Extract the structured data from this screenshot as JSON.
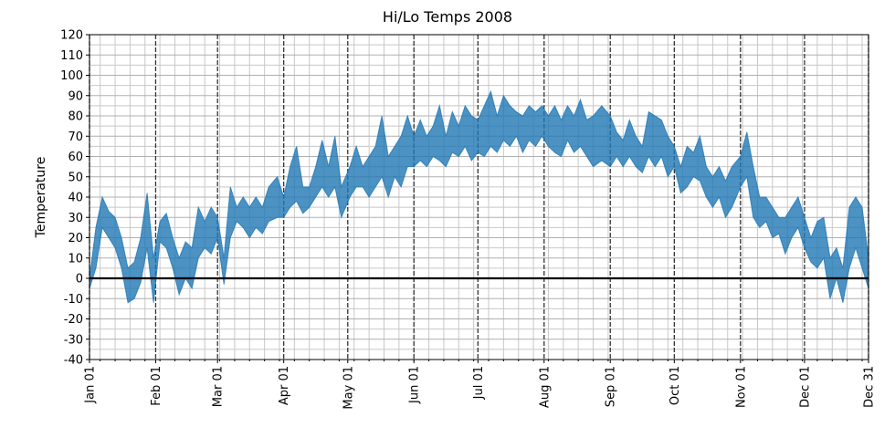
{
  "chart_data": {
    "type": "fill_between",
    "title": "Hi/Lo Temps 2008",
    "y_label": "Temperature",
    "x": [
      "2008-01-01",
      "2008-01-04",
      "2008-01-07",
      "2008-01-10",
      "2008-01-13",
      "2008-01-16",
      "2008-01-19",
      "2008-01-22",
      "2008-01-25",
      "2008-01-28",
      "2008-01-31",
      "2008-02-03",
      "2008-02-06",
      "2008-02-09",
      "2008-02-12",
      "2008-02-15",
      "2008-02-18",
      "2008-02-21",
      "2008-02-24",
      "2008-02-27",
      "2008-03-01",
      "2008-03-04",
      "2008-03-07",
      "2008-03-10",
      "2008-03-13",
      "2008-03-16",
      "2008-03-19",
      "2008-03-22",
      "2008-03-25",
      "2008-03-29",
      "2008-04-01",
      "2008-04-04",
      "2008-04-07",
      "2008-04-10",
      "2008-04-13",
      "2008-04-16",
      "2008-04-19",
      "2008-04-22",
      "2008-04-25",
      "2008-04-28",
      "2008-05-02",
      "2008-05-05",
      "2008-05-08",
      "2008-05-11",
      "2008-05-14",
      "2008-05-17",
      "2008-05-20",
      "2008-05-23",
      "2008-05-26",
      "2008-05-29",
      "2008-06-01",
      "2008-06-04",
      "2008-06-07",
      "2008-06-10",
      "2008-06-13",
      "2008-06-16",
      "2008-06-19",
      "2008-06-22",
      "2008-06-25",
      "2008-06-28",
      "2008-07-01",
      "2008-07-04",
      "2008-07-07",
      "2008-07-10",
      "2008-07-13",
      "2008-07-16",
      "2008-07-19",
      "2008-07-22",
      "2008-07-25",
      "2008-07-28",
      "2008-07-31",
      "2008-08-03",
      "2008-08-06",
      "2008-08-09",
      "2008-08-12",
      "2008-08-15",
      "2008-08-18",
      "2008-08-21",
      "2008-08-24",
      "2008-08-28",
      "2008-09-01",
      "2008-09-04",
      "2008-09-07",
      "2008-09-10",
      "2008-09-13",
      "2008-09-16",
      "2008-09-19",
      "2008-09-22",
      "2008-09-25",
      "2008-09-28",
      "2008-10-01",
      "2008-10-04",
      "2008-10-07",
      "2008-10-10",
      "2008-10-13",
      "2008-10-16",
      "2008-10-19",
      "2008-10-22",
      "2008-10-25",
      "2008-10-28",
      "2008-11-01",
      "2008-11-04",
      "2008-11-07",
      "2008-11-10",
      "2008-11-13",
      "2008-11-16",
      "2008-11-19",
      "2008-11-22",
      "2008-11-25",
      "2008-11-28",
      "2008-12-01",
      "2008-12-04",
      "2008-12-07",
      "2008-12-10",
      "2008-12-13",
      "2008-12-16",
      "2008-12-19",
      "2008-12-22",
      "2008-12-25",
      "2008-12-28",
      "2008-12-31"
    ],
    "series": [
      {
        "values": [
          -5,
          5,
          25,
          20,
          15,
          5,
          -12,
          -10,
          -2,
          15,
          -12,
          18,
          15,
          5,
          -8,
          0,
          -5,
          10,
          15,
          12,
          20,
          -3,
          20,
          28,
          25,
          20,
          25,
          22,
          28,
          30,
          30,
          35,
          38,
          32,
          35,
          40,
          45,
          40,
          45,
          30,
          40,
          45,
          45,
          40,
          45,
          50,
          40,
          50,
          45,
          55,
          55,
          58,
          55,
          60,
          58,
          55,
          62,
          60,
          65,
          58,
          62,
          60,
          65,
          62,
          68,
          65,
          70,
          62,
          68,
          65,
          70,
          65,
          62,
          60,
          68,
          62,
          65,
          60,
          55,
          58,
          55,
          60,
          55,
          60,
          55,
          52,
          60,
          55,
          60,
          50,
          55,
          42,
          45,
          50,
          48,
          40,
          35,
          40,
          30,
          35,
          45,
          50,
          30,
          25,
          28,
          20,
          22,
          12,
          20,
          25,
          15,
          8,
          5,
          10,
          -10,
          0,
          -12,
          5,
          15,
          5,
          -5
        ]
      },
      {
        "values": [
          0,
          25,
          40,
          33,
          30,
          20,
          5,
          8,
          20,
          42,
          10,
          28,
          32,
          20,
          10,
          18,
          15,
          35,
          28,
          35,
          30,
          10,
          45,
          35,
          40,
          35,
          40,
          35,
          45,
          50,
          40,
          55,
          65,
          45,
          45,
          55,
          68,
          55,
          70,
          45,
          55,
          65,
          55,
          60,
          65,
          80,
          60,
          65,
          70,
          80,
          70,
          78,
          70,
          75,
          85,
          70,
          82,
          75,
          85,
          80,
          78,
          85,
          92,
          80,
          90,
          85,
          82,
          80,
          85,
          82,
          85,
          80,
          85,
          78,
          85,
          80,
          88,
          78,
          80,
          85,
          80,
          72,
          68,
          78,
          70,
          65,
          82,
          80,
          78,
          70,
          65,
          55,
          65,
          62,
          70,
          55,
          50,
          55,
          48,
          55,
          60,
          72,
          55,
          40,
          40,
          35,
          30,
          30,
          35,
          40,
          30,
          20,
          28,
          30,
          10,
          15,
          5,
          35,
          40,
          35,
          10
        ]
      }
    ],
    "color": "#1f77b4",
    "alpha": 0.8,
    "xlim": [
      "2008-01-01",
      "2008-12-31"
    ],
    "xticks": [
      {
        "value": "2008-01-01",
        "label": "Jan 01"
      },
      {
        "value": "2008-02-01",
        "label": "Feb 01"
      },
      {
        "value": "2008-03-01",
        "label": "Mar 01"
      },
      {
        "value": "2008-04-01",
        "label": "Apr 01"
      },
      {
        "value": "2008-05-01",
        "label": "May 01"
      },
      {
        "value": "2008-06-01",
        "label": "Jun 01"
      },
      {
        "value": "2008-07-01",
        "label": "Jul 01"
      },
      {
        "value": "2008-08-01",
        "label": "Aug 01"
      },
      {
        "value": "2008-09-01",
        "label": "Sep 01"
      },
      {
        "value": "2008-10-01",
        "label": "Oct 01"
      },
      {
        "value": "2008-11-01",
        "label": "Nov 01"
      },
      {
        "value": "2008-12-01",
        "label": "Dec 01"
      },
      {
        "value": "2008-12-31",
        "label": "Dec 31"
      }
    ],
    "xminorticks": [
      "2008-01-06",
      "2008-01-13",
      "2008-01-20",
      "2008-01-27",
      "2008-02-03",
      "2008-02-10",
      "2008-02-17",
      "2008-02-24",
      "2008-03-02",
      "2008-03-09",
      "2008-03-16",
      "2008-03-23",
      "2008-03-30",
      "2008-04-06",
      "2008-04-13",
      "2008-04-20",
      "2008-04-27",
      "2008-05-04",
      "2008-05-11",
      "2008-05-18",
      "2008-05-25",
      "2008-06-01",
      "2008-06-08",
      "2008-06-15",
      "2008-06-22",
      "2008-06-29",
      "2008-07-06",
      "2008-07-13",
      "2008-07-20",
      "2008-07-27",
      "2008-08-03",
      "2008-08-10",
      "2008-08-17",
      "2008-08-24",
      "2008-08-31",
      "2008-09-07",
      "2008-09-14",
      "2008-09-21",
      "2008-09-28",
      "2008-10-05",
      "2008-10-12",
      "2008-10-19",
      "2008-10-26",
      "2008-11-02",
      "2008-11-09",
      "2008-11-16",
      "2008-11-23",
      "2008-11-30",
      "2008-12-07",
      "2008-12-14",
      "2008-12-21",
      "2008-12-28"
    ],
    "ylim": [
      -40,
      120
    ],
    "yticks": [
      -40,
      -30,
      -20,
      -10,
      0,
      10,
      20,
      30,
      40,
      50,
      60,
      70,
      80,
      90,
      100,
      110,
      120
    ],
    "yminorticks": [
      -35,
      -25,
      -15,
      -5,
      5,
      15,
      25,
      35,
      45,
      55,
      65,
      75,
      85,
      95,
      105,
      115
    ],
    "hline": 0,
    "grid": true
  }
}
